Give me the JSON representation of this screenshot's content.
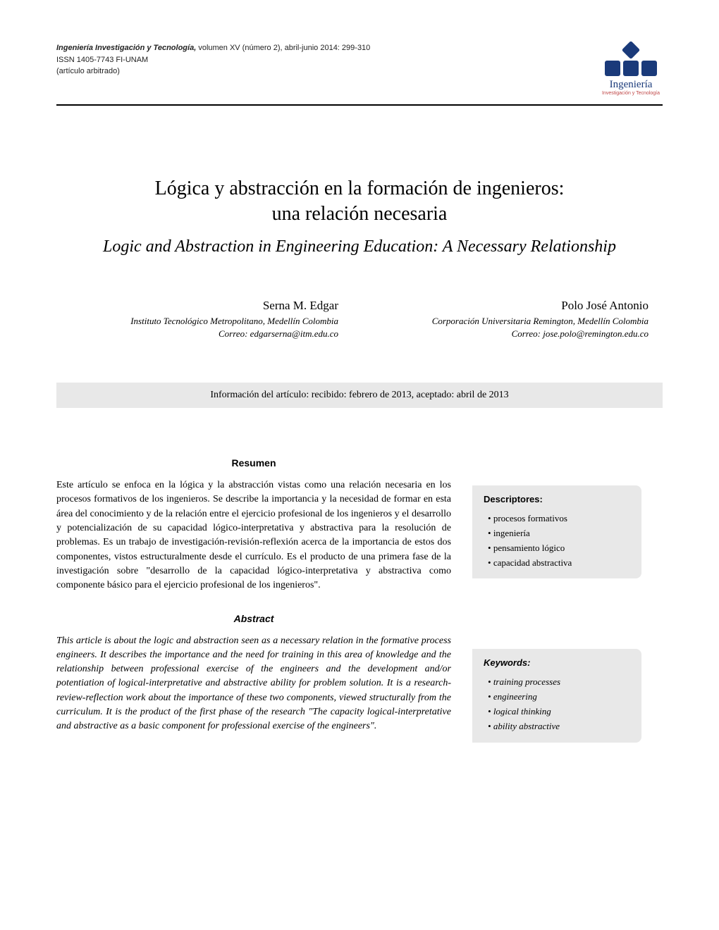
{
  "header": {
    "journal_name": "Ingeniería Investigación y Tecnología,",
    "issue_info": " volumen XV (número 2), abril-junio 2014: 299-310",
    "issn_line": "ISSN 1405-7743 FI-UNAM",
    "article_type": "(artículo arbitrado)",
    "logo_text": "Ingeniería",
    "logo_sub": "Investigación y Tecnología",
    "logo_color": "#1a3a7a",
    "logo_sub_color": "#c04848"
  },
  "title": {
    "es_line1": "Lógica y abstracción en la formación de ingenieros:",
    "es_line2": "una relación necesaria",
    "en": "Logic and Abstraction in Engineering Education: A Necessary Relationship"
  },
  "authors": [
    {
      "name": "Serna M. Edgar",
      "affil": "Instituto Tecnológico Metropolitano, Medellín Colombia",
      "email": "Correo: edgarserna@itm.edu.co"
    },
    {
      "name": "Polo José Antonio",
      "affil": "Corporación Universitaria Remington, Medellín Colombia",
      "email": "Correo: jose.polo@remington.edu.co"
    }
  ],
  "info_bar": "Información del artículo: recibido: febrero de 2013, aceptado: abril de 2013",
  "resumen": {
    "heading": "Resumen",
    "text": "Este artículo se enfoca en la lógica y la abstracción vistas como una relación necesaria en los procesos formativos de los ingenieros. Se describe la importancia y la necesidad de formar en esta área del conocimiento y de la relación entre el ejercicio profesional de los ingenieros y el desarrollo y potencialización de su capacidad lógico-interpretativa y abstractiva para la resolución de problemas. Es un trabajo de investigación-revisión-reflexión acerca de la importancia de estos dos componentes, vistos estructuralmente desde el currículo. Es el producto de una primera fase de la investigación sobre \"desarrollo de la capacidad lógico-interpretativa y abstractiva como componente básico para el ejercicio profesional de los ingenieros\"."
  },
  "abstract": {
    "heading": "Abstract",
    "text": "This article is about the logic and abstraction seen as a necessary relation in the formative process engineers. It describes the importance and the need for training in this area of knowledge and the relationship between professional exercise of the engineers and the development and/or potentiation of logical-interpretative and abstractive ability for problem solution. It is a research-review-reflection work about the importance of these two components, viewed structurally from the curriculum. It is the product of the first phase of the research \"The capacity logical-interpretative and abstractive as a basic component for professional exercise of the engineers\"."
  },
  "descriptores": {
    "heading": "Descriptores:",
    "items": [
      "procesos formativos",
      "ingeniería",
      "pensamiento lógico",
      "capacidad abstractiva"
    ]
  },
  "keywords": {
    "heading": "Keywords:",
    "items": [
      "training processes",
      "engineering",
      "logical thinking",
      "ability abstractive"
    ]
  },
  "colors": {
    "background": "#ffffff",
    "text": "#000000",
    "info_bar_bg": "#e8e8e8",
    "side_box_bg": "#e8e8e8",
    "rule": "#000000"
  },
  "typography": {
    "title_es_size_pt": 21,
    "title_en_size_pt": 18,
    "author_name_size_pt": 13,
    "body_size_pt": 10.5,
    "meta_size_pt": 8
  }
}
